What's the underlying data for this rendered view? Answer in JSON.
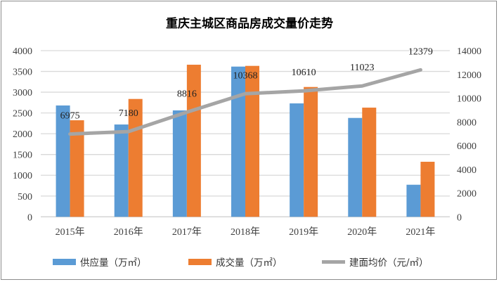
{
  "chart_data": {
    "type": "bar",
    "title": "重庆主城区商品房成交量价走势",
    "categories": [
      "2015年",
      "2016年",
      "2017年",
      "2018年",
      "2019年",
      "2020年",
      "2021年"
    ],
    "series": [
      {
        "name": "供应量（万㎡）",
        "type": "bar",
        "axis": "left",
        "color": "#5B9BD5",
        "values": [
          2680,
          2222,
          2561,
          3616,
          2730,
          2380,
          772
        ]
      },
      {
        "name": "成交量（万㎡）",
        "type": "bar",
        "axis": "left",
        "color": "#ED7D31",
        "values": [
          2324,
          2837,
          3661,
          3633,
          3125,
          2628,
          1325
        ]
      },
      {
        "name": "建面均价（元/㎡）",
        "type": "line",
        "axis": "right",
        "color": "#A5A5A5",
        "values": [
          6975,
          7180,
          8816,
          10368,
          10610,
          11023,
          12379
        ],
        "data_labels": [
          "6975",
          "7180",
          "8816",
          "10368",
          "10610",
          "11023",
          "12379"
        ]
      }
    ],
    "y_left": {
      "range": [
        0,
        4000
      ],
      "ticks": [
        "0",
        "500",
        "1000",
        "1500",
        "2000",
        "2500",
        "3000",
        "3500",
        "4000"
      ]
    },
    "y_right": {
      "range": [
        0,
        14000
      ],
      "ticks": [
        "0",
        "2000",
        "4000",
        "6000",
        "8000",
        "10000",
        "12000",
        "14000"
      ]
    },
    "grid": true,
    "legend": "bottom"
  }
}
